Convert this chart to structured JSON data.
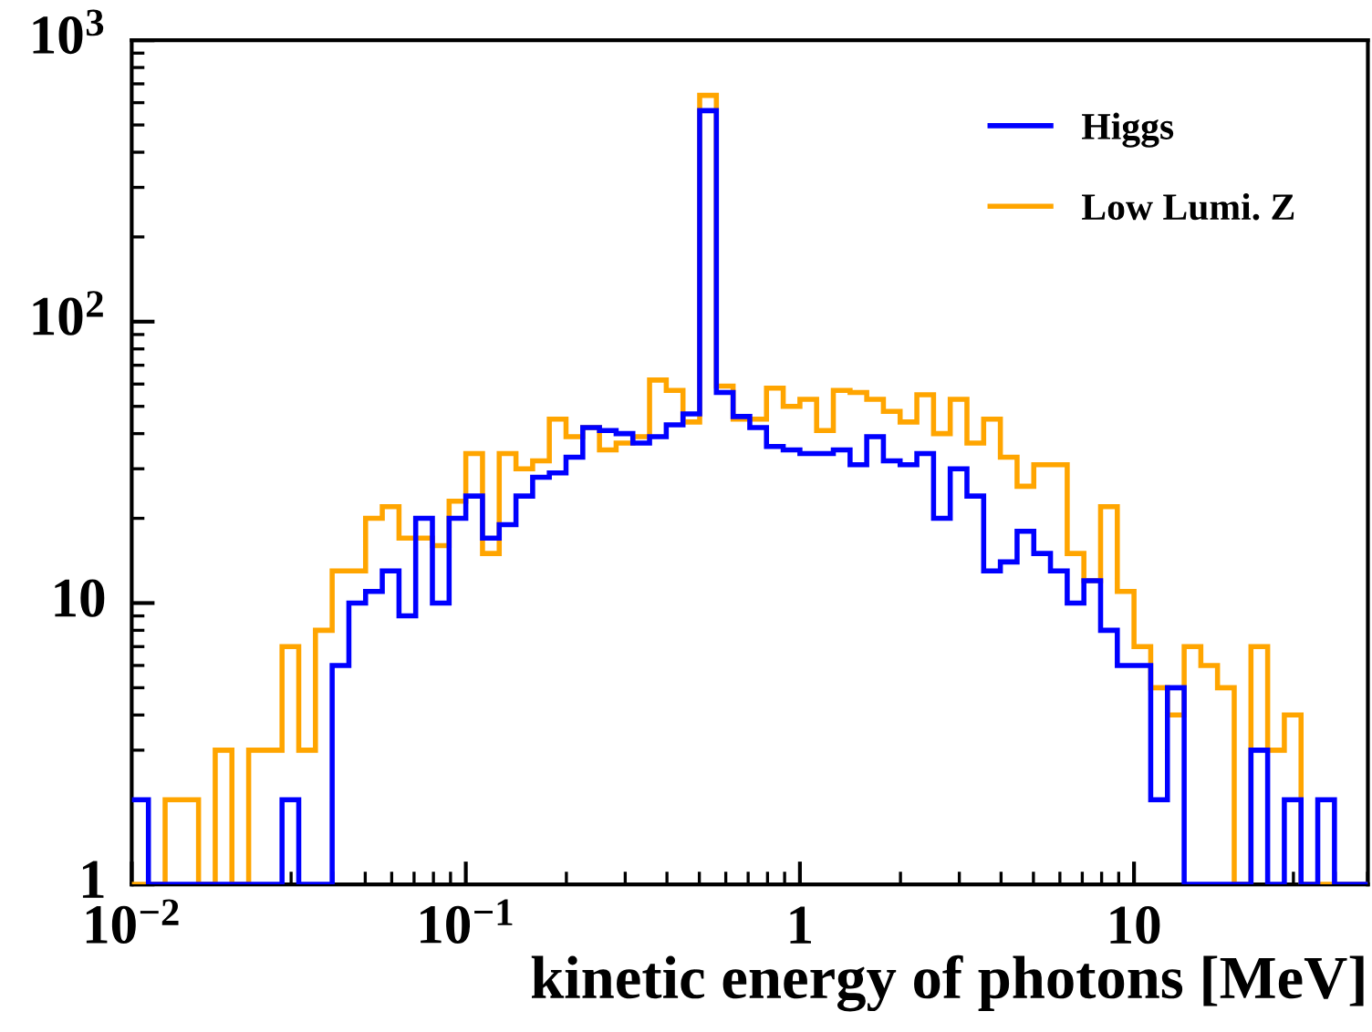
{
  "chart_data": {
    "type": "histogram",
    "xlabel": "kinetic energy of photons [MeV]",
    "bins": [
      0.01,
      0.01122,
      0.01259,
      0.01413,
      0.01585,
      0.01778,
      0.01995,
      0.02239,
      0.02512,
      0.02818,
      0.03162,
      0.03548,
      0.03981,
      0.04467,
      0.05012,
      0.05623,
      0.0631,
      0.07079,
      0.07943,
      0.08913,
      0.1,
      0.1122,
      0.1259,
      0.1413,
      0.1585,
      0.1778,
      0.1995,
      0.2239,
      0.2512,
      0.2818,
      0.3162,
      0.3548,
      0.3981,
      0.4467,
      0.5012,
      0.5623,
      0.631,
      0.7079,
      0.7943,
      0.8913,
      1,
      1.122,
      1.259,
      1.413,
      1.585,
      1.778,
      1.995,
      2.239,
      2.512,
      2.818,
      3.162,
      3.548,
      3.981,
      4.467,
      5.012,
      5.623,
      6.31,
      7.079,
      7.943,
      8.913,
      10,
      11.22,
      12.59,
      14.13,
      15.85,
      17.78,
      19.95,
      22.39,
      25.12,
      28.18,
      31.62,
      35.48,
      39.81,
      44.67,
      50.12
    ],
    "series": [
      {
        "name": "Higgs",
        "color": "#0000ff",
        "values": [
          2,
          null,
          null,
          null,
          null,
          null,
          null,
          null,
          null,
          2,
          null,
          null,
          6,
          10,
          11,
          13,
          9,
          20,
          10,
          20,
          24,
          17,
          19,
          24,
          28,
          29,
          33,
          42,
          41,
          40,
          37,
          39,
          43,
          47,
          562,
          56,
          46,
          42,
          36,
          35,
          34,
          34,
          35,
          31,
          39,
          32,
          31,
          34,
          20,
          30,
          24,
          13,
          14,
          18,
          15,
          13,
          10,
          12,
          8,
          6,
          6,
          2,
          5,
          null,
          null,
          null,
          null,
          3,
          null,
          2,
          null,
          2,
          null,
          null
        ]
      },
      {
        "name": "Low Lumi. Z",
        "color": "#ffa500",
        "values": [
          null,
          null,
          2,
          2,
          null,
          3,
          null,
          3,
          3,
          7,
          3,
          8,
          13,
          13,
          20,
          22,
          17,
          17,
          16,
          23,
          34,
          15,
          34,
          30,
          32,
          45,
          39,
          42,
          35,
          37,
          39,
          62,
          57,
          44,
          637,
          59,
          45,
          45,
          58,
          50,
          53,
          41,
          57,
          56,
          53,
          48,
          44,
          55,
          40,
          53,
          37,
          45,
          33,
          26,
          31,
          31,
          15,
          12,
          22,
          11,
          7,
          5,
          4,
          7,
          6,
          5,
          null,
          7,
          3,
          4,
          null,
          null,
          null,
          null
        ]
      }
    ],
    "log": "xy",
    "xlim": [
      0.01,
      50.12
    ],
    "ylim": [
      1,
      1000
    ],
    "xticks": [
      {
        "value": 0.01,
        "label": "10$^{−2}$"
      },
      {
        "value": 0.1,
        "label": "10$^{−1}$"
      },
      1,
      10
    ],
    "yticks": [
      1,
      10,
      {
        "value": 100,
        "label": "10$^{2}$"
      },
      {
        "value": 1000,
        "label": "10$^{3}$"
      }
    ],
    "legend": "top right",
    "grid": false
  }
}
